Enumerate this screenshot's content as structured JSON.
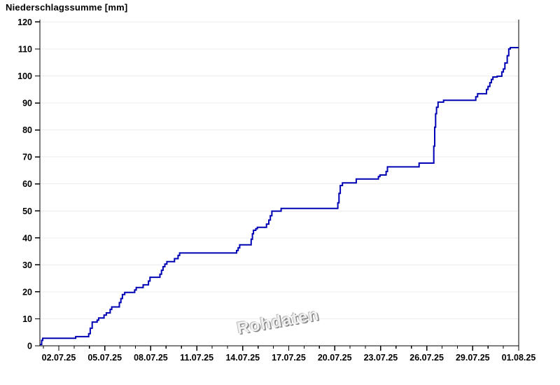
{
  "chart_data": {
    "type": "line",
    "subtype": "cumulative-step",
    "title": "Niederschlagssumme [mm]",
    "watermark": "Rohdaten",
    "grid": "horizontal-only",
    "legend": "none",
    "line_color": "#0000b4",
    "axis_color": "#000000",
    "grid_color": "#ececec",
    "x_axis": {
      "kind": "date",
      "domain_days_from_2025_07_01": [
        -0.233,
        31
      ],
      "major_tick_days": [
        1,
        4,
        7,
        10,
        13,
        16,
        19,
        22,
        25,
        28,
        31
      ],
      "tick_labels": [
        "02.07.25",
        "05.07.25",
        "08.07.25",
        "11.07.25",
        "14.07.25",
        "17.07.25",
        "20.07.25",
        "23.07.25",
        "26.07.25",
        "29.07.25",
        "01.08.25"
      ],
      "minor_ticks_every_days": 1
    },
    "y_axis": {
      "range": [
        0,
        120
      ],
      "ticks": [
        0,
        10,
        20,
        30,
        40,
        50,
        60,
        70,
        80,
        90,
        100,
        110,
        120
      ],
      "tick_labels": [
        "0",
        "10",
        "20",
        "30",
        "40",
        "50",
        "60",
        "70",
        "80",
        "90",
        "100",
        "110",
        "120"
      ]
    },
    "series": [
      {
        "name": "Niederschlagssumme",
        "color": "#0000b4",
        "points_day_mm": [
          [
            -0.233,
            0.5
          ],
          [
            -0.12,
            2.0
          ],
          [
            -0.05,
            2.8
          ],
          [
            2.1,
            3.4
          ],
          [
            2.95,
            4.5
          ],
          [
            3.05,
            6.5
          ],
          [
            3.18,
            8.8
          ],
          [
            3.5,
            9.5
          ],
          [
            3.6,
            10.3
          ],
          [
            3.95,
            11.4
          ],
          [
            4.1,
            12.2
          ],
          [
            4.35,
            13.5
          ],
          [
            4.45,
            14.4
          ],
          [
            4.95,
            16.0
          ],
          [
            5.05,
            17.5
          ],
          [
            5.15,
            19.0
          ],
          [
            5.3,
            19.8
          ],
          [
            5.95,
            20.7
          ],
          [
            6.05,
            21.6
          ],
          [
            6.5,
            22.6
          ],
          [
            6.85,
            24.0
          ],
          [
            6.95,
            25.4
          ],
          [
            7.6,
            26.5
          ],
          [
            7.7,
            28.0
          ],
          [
            7.8,
            29.3
          ],
          [
            7.92,
            30.3
          ],
          [
            8.05,
            31.2
          ],
          [
            8.55,
            32.3
          ],
          [
            8.78,
            33.5
          ],
          [
            8.88,
            34.4
          ],
          [
            12.6,
            35.3
          ],
          [
            12.7,
            36.3
          ],
          [
            12.8,
            37.4
          ],
          [
            13.55,
            39.5
          ],
          [
            13.63,
            41.5
          ],
          [
            13.7,
            42.8
          ],
          [
            13.85,
            43.4
          ],
          [
            13.95,
            43.9
          ],
          [
            14.55,
            45.1
          ],
          [
            14.7,
            46.6
          ],
          [
            14.8,
            48.2
          ],
          [
            14.9,
            49.9
          ],
          [
            15.5,
            50.9
          ],
          [
            19.2,
            53.0
          ],
          [
            19.28,
            56.5
          ],
          [
            19.36,
            59.4
          ],
          [
            19.5,
            60.4
          ],
          [
            20.4,
            61.8
          ],
          [
            21.85,
            62.7
          ],
          [
            21.95,
            63.3
          ],
          [
            22.35,
            64.6
          ],
          [
            22.44,
            66.3
          ],
          [
            24.5,
            67.7
          ],
          [
            25.46,
            74.0
          ],
          [
            25.52,
            81.0
          ],
          [
            25.58,
            86.0
          ],
          [
            25.64,
            88.4
          ],
          [
            25.74,
            90.3
          ],
          [
            26.1,
            91.0
          ],
          [
            28.2,
            92.3
          ],
          [
            28.32,
            93.4
          ],
          [
            28.9,
            95.0
          ],
          [
            29.0,
            96.1
          ],
          [
            29.12,
            97.5
          ],
          [
            29.22,
            98.7
          ],
          [
            29.32,
            99.6
          ],
          [
            29.6,
            99.9
          ],
          [
            29.9,
            101.5
          ],
          [
            30.0,
            102.6
          ],
          [
            30.1,
            104.8
          ],
          [
            30.25,
            107.5
          ],
          [
            30.35,
            110.0
          ],
          [
            30.45,
            110.5
          ],
          [
            31.0,
            110.5
          ]
        ]
      }
    ]
  }
}
